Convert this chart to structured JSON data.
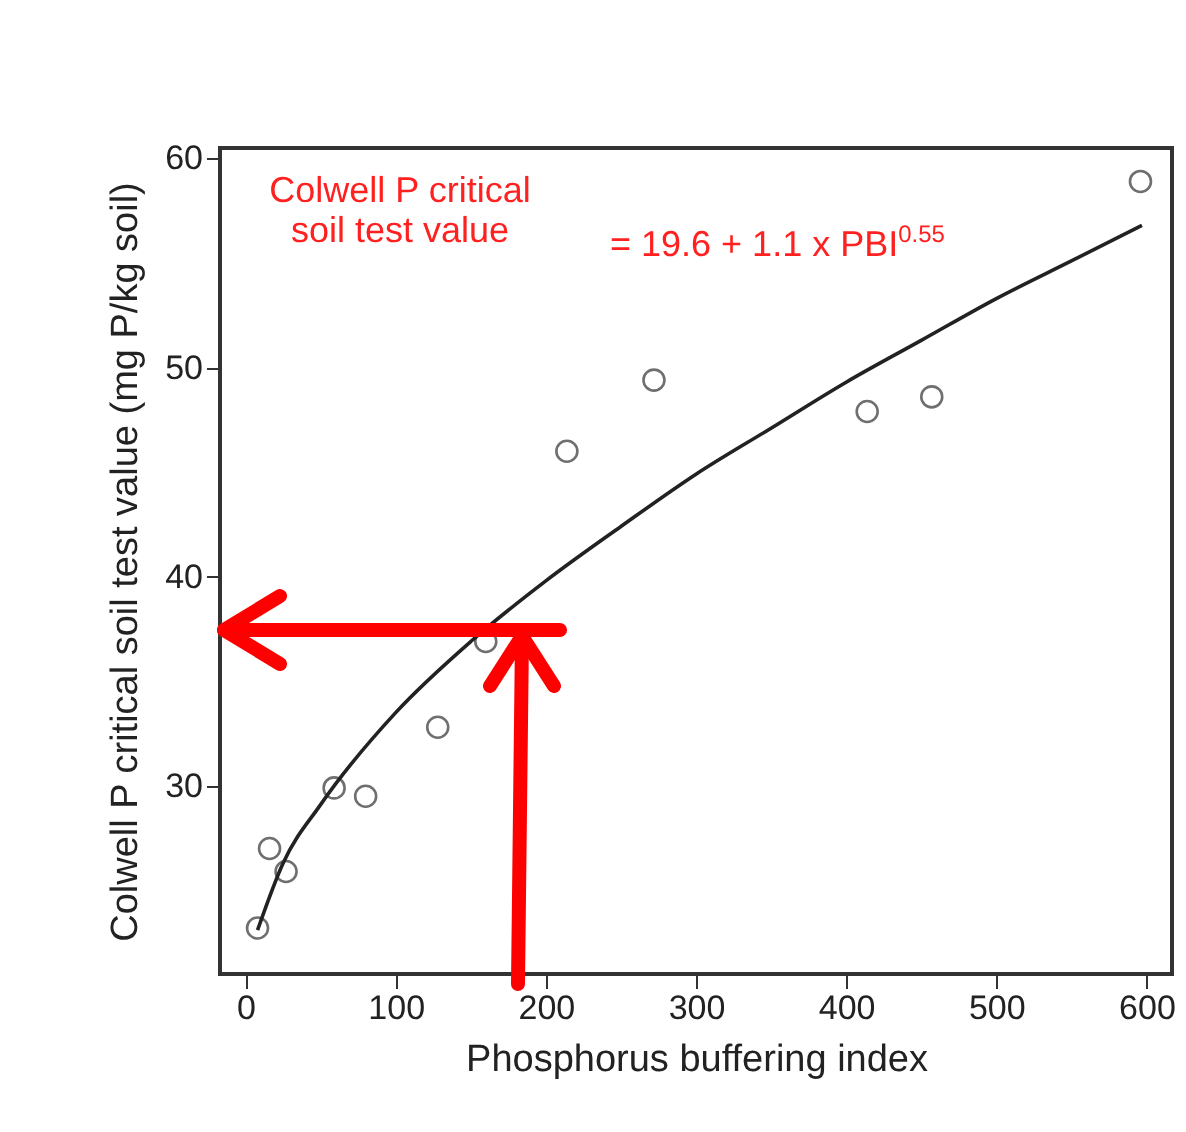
{
  "chart_data": {
    "type": "scatter",
    "xlabel": "Phosphorus buffering index",
    "ylabel": "Colwell P critical soil test value (mg P/kg soil)",
    "annotations": [
      "Colwell P critical\nsoil test value",
      "= 19.6 + 1.1 x PBI$^{0.55}$"
    ],
    "marker": "circle",
    "xlim": [
      -17,
      617
    ],
    "ylim": [
      21,
      60.5
    ],
    "xticks": [
      0,
      100,
      200,
      300,
      400,
      500,
      600
    ],
    "yticks": [
      30,
      40,
      50,
      60
    ],
    "series": [
      {
        "color": "#333333",
        "x": [
          8,
          16,
          27,
          59,
          80,
          128,
          160,
          214,
          272,
          414,
          457,
          596
        ],
        "values": [
          23.2,
          27.0,
          25.9,
          29.9,
          29.5,
          32.8,
          36.9,
          46.0,
          49.4,
          47.9,
          48.6,
          58.9
        ]
      },
      {
        "type": "line",
        "color": "#222222",
        "marker": "none",
        "x": [
          8,
          25,
          50,
          100,
          150,
          200,
          250,
          300,
          350,
          400,
          450,
          500,
          550,
          597
        ],
        "values": [
          23.1,
          26.3,
          29.1,
          33.5,
          36.9,
          39.8,
          42.4,
          44.9,
          47.1,
          49.3,
          51.3,
          53.3,
          55.1,
          56.8
        ]
      }
    ]
  }
}
